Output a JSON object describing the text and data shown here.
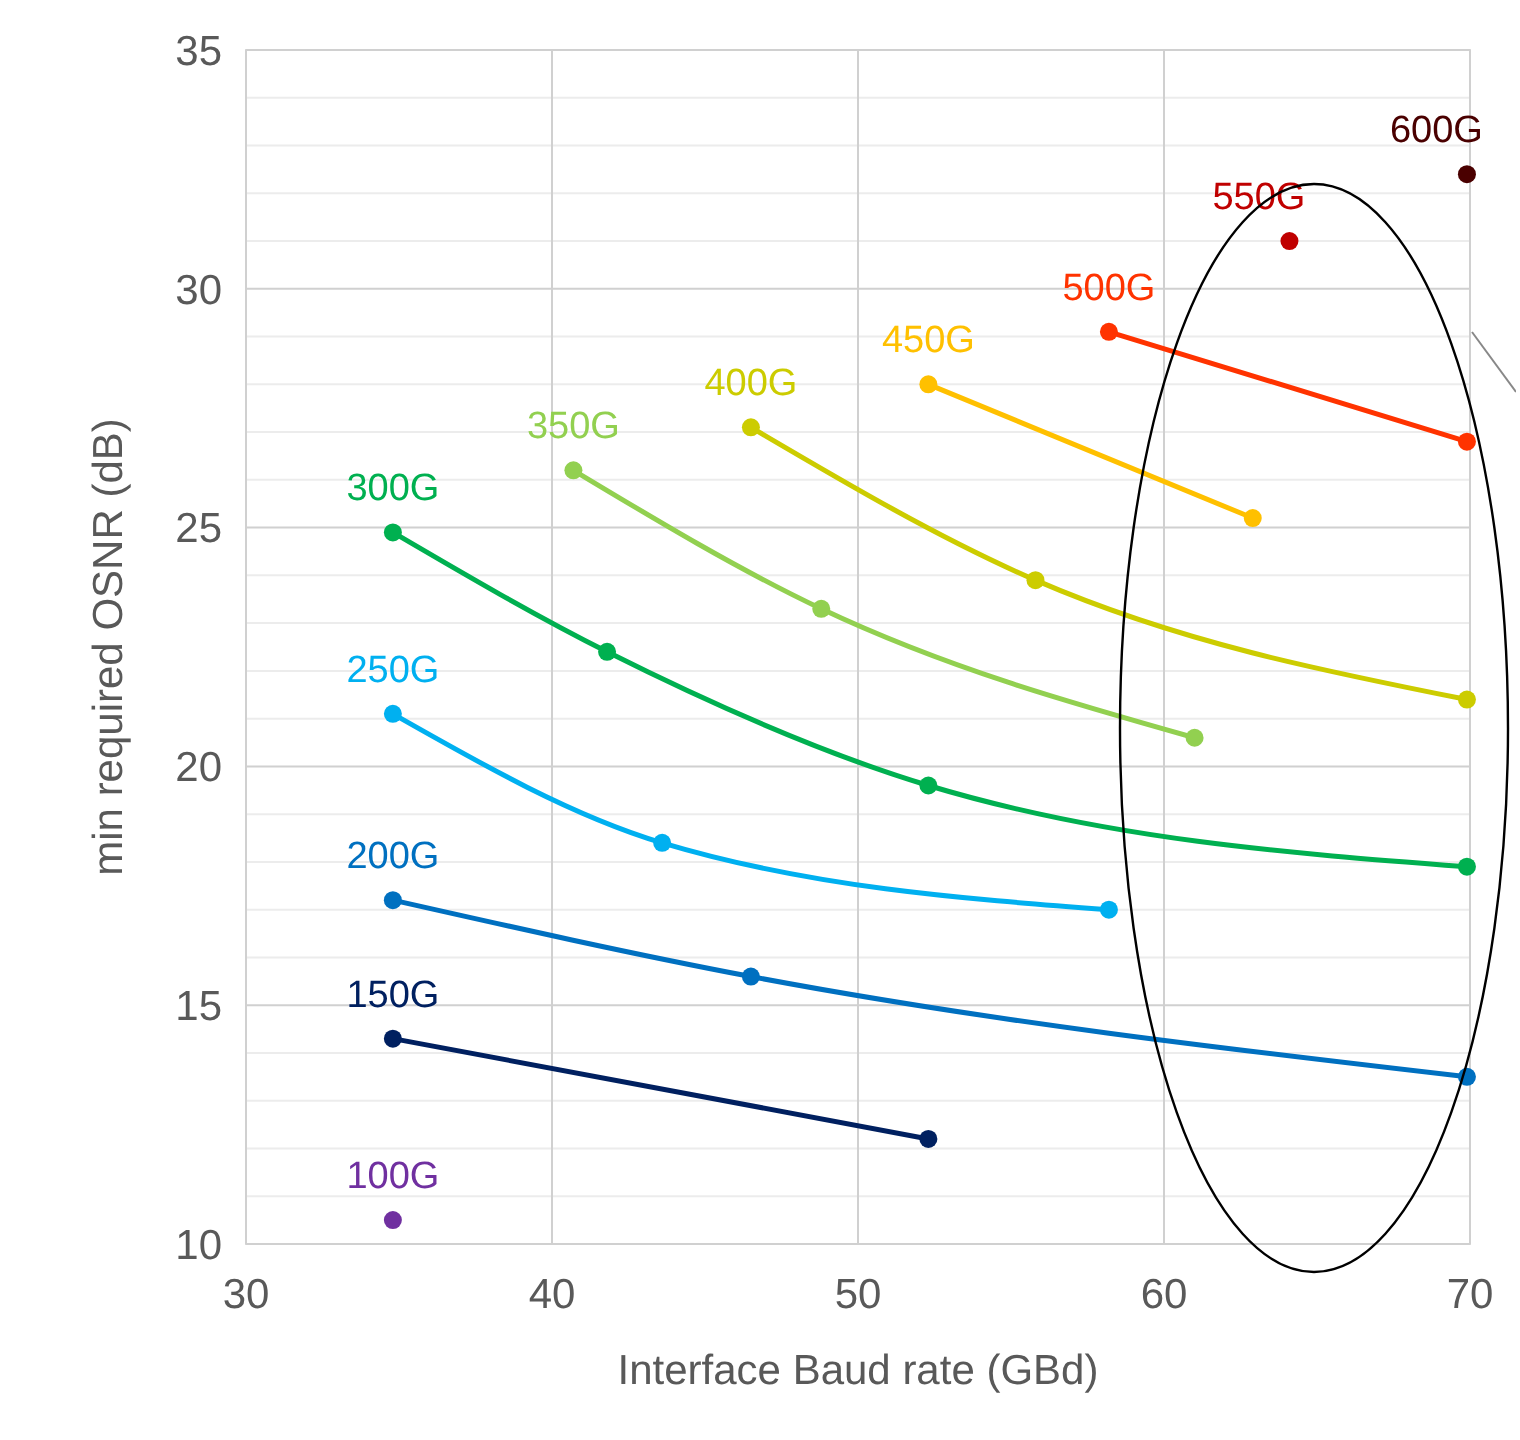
{
  "chart_data": {
    "type": "line",
    "xlabel": "Interface Baud rate (GBd)",
    "ylabel": "min required OSNR (dB)",
    "xlim": [
      30,
      70
    ],
    "xticks": [
      30,
      40,
      50,
      60,
      70
    ],
    "ylim": [
      10,
      35
    ],
    "yticks": [
      10,
      {
        "value": 11,
        "label": null
      },
      {
        "value": 12,
        "label": null
      },
      {
        "value": 13,
        "label": null
      },
      {
        "value": 14,
        "label": null
      },
      15,
      {
        "value": 16,
        "label": null
      },
      {
        "value": 17,
        "label": null
      },
      {
        "value": 18,
        "label": null
      },
      {
        "value": 19,
        "label": null
      },
      20,
      {
        "value": 21,
        "label": null
      },
      {
        "value": 22,
        "label": null
      },
      {
        "value": 23,
        "label": null
      },
      {
        "value": 24,
        "label": null
      },
      25,
      {
        "value": 26,
        "label": null
      },
      {
        "value": 27,
        "label": null
      },
      {
        "value": 28,
        "label": null
      },
      {
        "value": 29,
        "label": null
      },
      30,
      {
        "value": 31,
        "label": null
      },
      {
        "value": 32,
        "label": null
      },
      {
        "value": 33,
        "label": null
      },
      {
        "value": 34,
        "label": null
      },
      35
    ],
    "grid": true,
    "marker": "circle",
    "series": [
      {
        "name": "100G",
        "color": "#7030a0",
        "x": [
          34.8
        ],
        "values": [
          10.5
        ]
      },
      {
        "name": "150G",
        "color": "#002060",
        "x": [
          34.8,
          52.3
        ],
        "values": [
          14.3,
          12.2
        ]
      },
      {
        "name": "200G",
        "color": "#0070c0",
        "x": [
          34.8,
          46.5,
          69.9
        ],
        "values": [
          17.2,
          15.6,
          13.5
        ]
      },
      {
        "name": "250G",
        "color": "#00b0f0",
        "x": [
          34.8,
          43.6,
          58.2
        ],
        "values": [
          21.1,
          18.4,
          17.0
        ]
      },
      {
        "name": "300G",
        "color": "#00b050",
        "x": [
          34.8,
          41.8,
          52.3,
          69.9
        ],
        "values": [
          24.9,
          22.4,
          19.6,
          17.9
        ]
      },
      {
        "name": "350G",
        "color": "#92d050",
        "x": [
          40.7,
          48.8,
          61.0
        ],
        "values": [
          26.2,
          23.3,
          20.6
        ]
      },
      {
        "name": "400G",
        "color": "#cccc00",
        "x": [
          46.5,
          55.8,
          69.9
        ],
        "values": [
          27.1,
          23.9,
          21.4
        ]
      },
      {
        "name": "450G",
        "color": "#ffc000",
        "x": [
          52.3,
          62.9
        ],
        "values": [
          28.0,
          25.2
        ]
      },
      {
        "name": "500G",
        "color": "#ff3300",
        "x": [
          58.2,
          69.9
        ],
        "values": [
          29.1,
          26.8
        ]
      },
      {
        "name": "550G",
        "color": "#c00000",
        "x": [
          64.1
        ],
        "values": [
          31.0
        ]
      },
      {
        "name": "600G",
        "color": "#4a0000",
        "x": [
          69.9
        ],
        "values": [
          32.4
        ]
      }
    ]
  }
}
